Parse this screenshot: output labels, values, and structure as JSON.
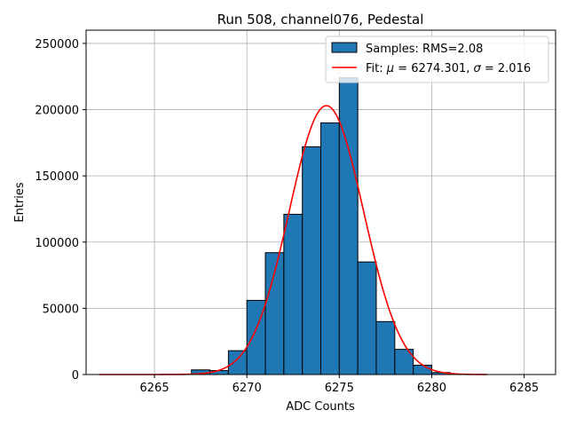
{
  "chart_data": {
    "type": "bar",
    "title": "Run 508, channel076, Pedestal",
    "xlabel": "ADC Counts",
    "ylabel": "Entries",
    "xlim": [
      6261.3,
      6286.7
    ],
    "ylim": [
      0,
      260000
    ],
    "xticks": [
      6265,
      6270,
      6275,
      6280,
      6285
    ],
    "yticks": [
      0,
      50000,
      100000,
      150000,
      200000,
      250000
    ],
    "grid": true,
    "legend_position": "top-right",
    "bin_width": 1,
    "bins": [
      {
        "left": 6267,
        "value": 3500
      },
      {
        "left": 6268,
        "value": 3000
      },
      {
        "left": 6269,
        "value": 18000
      },
      {
        "left": 6270,
        "value": 56000
      },
      {
        "left": 6271,
        "value": 92000
      },
      {
        "left": 6272,
        "value": 121000
      },
      {
        "left": 6273,
        "value": 172000
      },
      {
        "left": 6274,
        "value": 190000
      },
      {
        "left": 6275,
        "value": 224000
      },
      {
        "left": 6276,
        "value": 85000
      },
      {
        "left": 6277,
        "value": 40000
      },
      {
        "left": 6278,
        "value": 19000
      },
      {
        "left": 6279,
        "value": 7000
      },
      {
        "left": 6280,
        "value": 1500
      },
      {
        "left": 6281,
        "value": 300
      }
    ],
    "fit": {
      "mu": 6274.301,
      "sigma": 2.016,
      "amplitude": 203000,
      "x_range": [
        6262,
        6283
      ]
    },
    "series": [
      {
        "name": "Samples: RMS=2.08",
        "kind": "histogram",
        "color": "#1f77b4"
      },
      {
        "name_prefix": "Fit: ",
        "mu_symbol": "μ",
        "mu_text": " = 6274.301, ",
        "sigma_symbol": "σ",
        "sigma_text": " = 2.016",
        "kind": "line",
        "color": "#ff0000"
      }
    ]
  }
}
